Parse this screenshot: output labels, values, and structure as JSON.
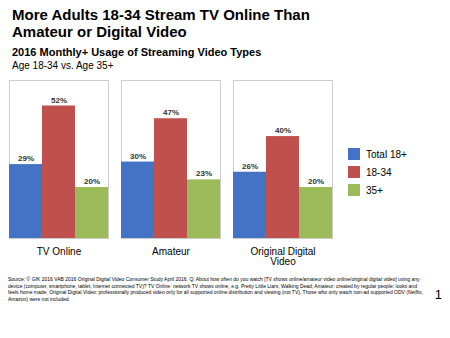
{
  "chart_data": {
    "type": "bar",
    "title": "2016 Monthly+ Usage of Streaming Video Types",
    "subtitle": "Age 18-34 vs. Age 35+",
    "annotations": [
      "More Adults 18-34 Stream TV Online Than",
      "Amateur or Digital Video",
      "Source: © GfK 2016 VAB 2016 Original Digital Video Consumer Study April 2016. Q: About how often do you watch [TV shows online/amateur video online/original digital\nvideo] using any device (computer, smartphone, tablet, Internet connected TV)?  TV Online: network TV shows online, e.g. Pretty Little Liars, Walking Dead; Amateur: created\nby regular people: looks and feels home made; Original Digital Video: professionally produced video only for all supported online distribution and viewing (not TV).  Those who\nonly watch non-ad supported ODV (Netflix, Amazon) were not included.",
      "1"
    ],
    "categories": [
      "TV Online",
      "Amateur",
      "Original Digital\nVideo"
    ],
    "series": [
      {
        "name": "Total 18+",
        "color": "#4472C4",
        "values": [
          29,
          30,
          26
        ],
        "value_labels": [
          "29%",
          "30%",
          "26%"
        ]
      },
      {
        "name": "18-34",
        "color": "#C0504D",
        "values": [
          52,
          47,
          40
        ],
        "value_labels": [
          "52%",
          "47%",
          "40%"
        ]
      },
      {
        "name": "35+",
        "color": "#9BBB59",
        "values": [
          20,
          23,
          20
        ],
        "value_labels": [
          "20%",
          "23%",
          "20%"
        ]
      }
    ],
    "ylim": [
      0,
      62
    ],
    "yticks": [],
    "data_labels": true,
    "tick_labels": "x",
    "legend": "right"
  }
}
